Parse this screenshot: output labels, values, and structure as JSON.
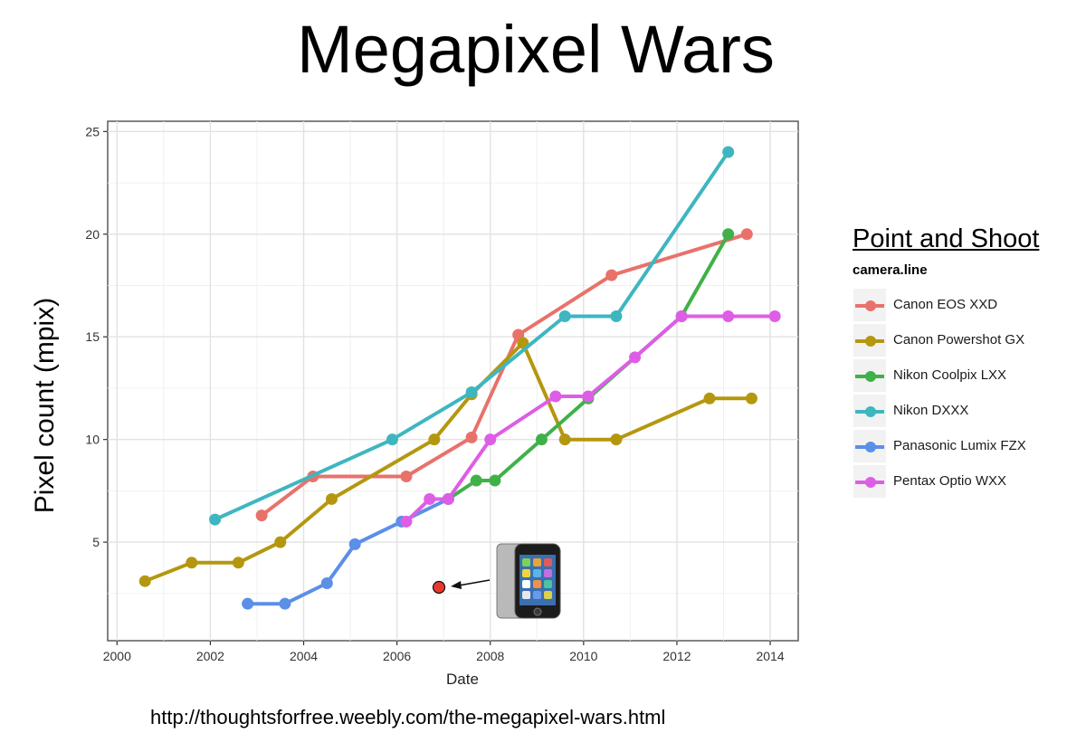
{
  "page": {
    "title": "Megapixel Wars",
    "source_url": "http://thoughtsforfree.weebly.com/the-megapixel-wars.html",
    "legend_caption": "Point and Shoot"
  },
  "chart_data": {
    "type": "line",
    "title": "Megapixel Wars",
    "xlabel": "Date",
    "ylabel": "Pixel count (mpix)",
    "xlim": [
      1999.8,
      2014.6
    ],
    "ylim": [
      0.2,
      25.5
    ],
    "x_ticks": [
      2000,
      2002,
      2004,
      2006,
      2008,
      2010,
      2012,
      2014
    ],
    "y_ticks": [
      5,
      10,
      15,
      20,
      25
    ],
    "grid": true,
    "legend_title": "camera.line",
    "legend_position": "right",
    "series": [
      {
        "name": "Canon EOS XXD",
        "color": "#e8726b",
        "x": [
          2003.1,
          2004.2,
          2006.2,
          2007.6,
          2008.6,
          2010.6,
          2013.5
        ],
        "y": [
          6.3,
          8.2,
          8.2,
          10.1,
          15.1,
          18.0,
          20.0
        ]
      },
      {
        "name": "Canon Powershot GX",
        "color": "#b5970f",
        "x": [
          2000.6,
          2001.6,
          2002.6,
          2003.5,
          2004.6,
          2006.8,
          2007.6,
          2008.7,
          2009.6,
          2010.7,
          2012.7,
          2013.6
        ],
        "y": [
          3.1,
          4.0,
          4.0,
          5.0,
          7.1,
          10.0,
          12.2,
          14.7,
          10.0,
          10.0,
          12.0,
          12.0
        ]
      },
      {
        "name": "Nikon Coolpix LXX",
        "color": "#3fb14a",
        "x": [
          2007.1,
          2007.7,
          2008.1,
          2009.1,
          2010.1,
          2012.1,
          2013.1
        ],
        "y": [
          7.1,
          8.0,
          8.0,
          10.0,
          12.0,
          16.0,
          20.0
        ]
      },
      {
        "name": "Nikon DXXX",
        "color": "#3eb6c0",
        "x": [
          2002.1,
          2005.9,
          2007.6,
          2009.6,
          2010.7,
          2013.1
        ],
        "y": [
          6.1,
          10.0,
          12.3,
          16.0,
          16.0,
          24.0
        ]
      },
      {
        "name": "Panasonic Lumix FZX",
        "color": "#5b8fe8",
        "x": [
          2002.8,
          2003.6,
          2004.5,
          2005.1,
          2006.1,
          2007.1
        ],
        "y": [
          2.0,
          2.0,
          3.0,
          4.9,
          6.0,
          7.1
        ]
      },
      {
        "name": "Pentax Optio WXX",
        "color": "#de5de6",
        "x": [
          2006.2,
          2006.7,
          2007.1,
          2008.0,
          2009.4,
          2010.1,
          2011.1,
          2012.1,
          2013.1,
          2014.1
        ],
        "y": [
          6.0,
          7.1,
          7.1,
          10.0,
          12.1,
          12.1,
          14.0,
          16.0,
          16.0,
          16.0
        ]
      }
    ],
    "annotations": [
      {
        "label": "iPhone",
        "x": 2006.9,
        "y": 2.8,
        "color": "#e8392e"
      }
    ]
  }
}
